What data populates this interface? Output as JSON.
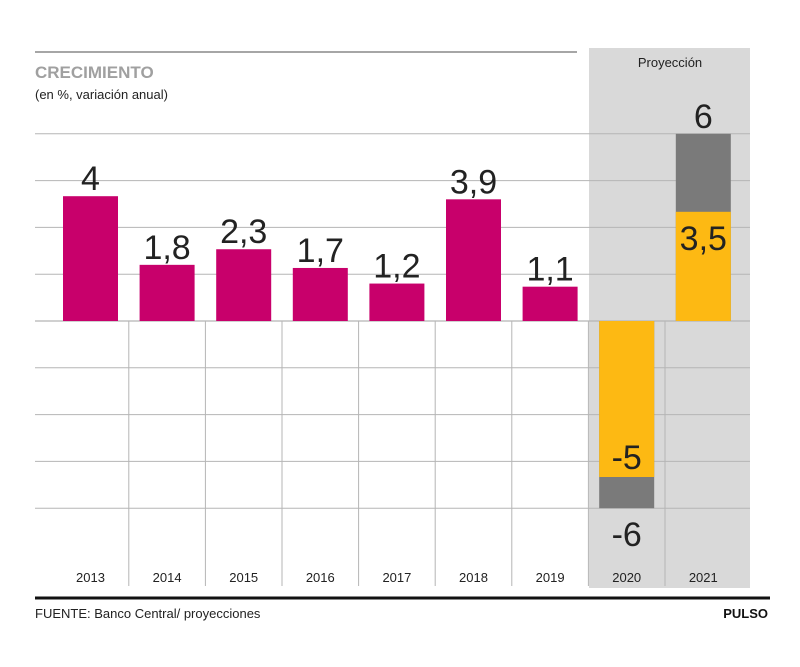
{
  "header": {
    "title": "CRECIMIENTO",
    "subtitle": "(en %, variación anual)",
    "projection_label": "Proyección"
  },
  "footer": {
    "source": "FUENTE: Banco Central/ proyecciones",
    "brand": "PULSO"
  },
  "colors": {
    "actual": "#c8006b",
    "projection_central": "#fdb913",
    "projection_range": "#7a7a7a",
    "projection_background": "#d9d9d9",
    "gridline": "#b5b5b5"
  },
  "chart_data": {
    "type": "bar",
    "title": "CRECIMIENTO",
    "subtitle": "(en %, variación anual)",
    "xlabel": "",
    "ylabel": "",
    "ylim": [
      -8,
      8
    ],
    "grid": true,
    "categories": [
      "2013",
      "2014",
      "2015",
      "2016",
      "2017",
      "2018",
      "2019",
      "2020",
      "2021"
    ],
    "series": [
      {
        "values": [
          4,
          1.8,
          2.3,
          1.7,
          1.2,
          3.9,
          1.1,
          null,
          null
        ],
        "labels": [
          "4",
          "1,8",
          "2,3",
          "1,7",
          "1,2",
          "3,9",
          "1,1",
          null,
          null
        ]
      },
      {
        "values": [
          null,
          null,
          null,
          null,
          null,
          null,
          null,
          -5,
          3.5
        ],
        "labels": [
          null,
          null,
          null,
          null,
          null,
          null,
          null,
          "-5",
          "3,5"
        ]
      },
      {
        "values": [
          null,
          null,
          null,
          null,
          null,
          null,
          null,
          -6,
          6
        ],
        "labels": [
          null,
          null,
          null,
          null,
          null,
          null,
          null,
          "-6",
          "6"
        ]
      }
    ],
    "projection_categories": [
      "2020",
      "2021"
    ]
  }
}
